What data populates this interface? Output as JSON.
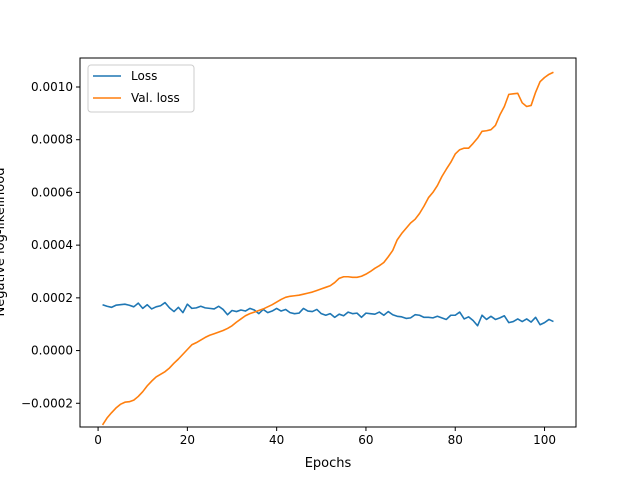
{
  "chart_data": {
    "type": "line",
    "title": "",
    "xlabel": "Epochs",
    "ylabel": "Negative log-likelihood",
    "xlim": [
      -4.05,
      107.05
    ],
    "ylim": [
      -0.00029,
      0.00111
    ],
    "xticks": [
      0,
      20,
      40,
      60,
      80,
      100
    ],
    "xtick_labels": [
      "0",
      "20",
      "40",
      "60",
      "80",
      "100"
    ],
    "yticks": [
      -0.0002,
      0.0,
      0.0002,
      0.0004,
      0.0006,
      0.0008,
      0.001
    ],
    "ytick_labels": [
      "−0.0002",
      "0.0000",
      "0.0002",
      "0.0004",
      "0.0006",
      "0.0008",
      "0.0010"
    ],
    "grid": false,
    "legend_position": "top-left",
    "series": [
      {
        "name": "Loss",
        "color": "#1f77b4",
        "points": [
          [
            1,
            0.000174
          ],
          [
            2,
            0.000168
          ],
          [
            3,
            0.000164
          ],
          [
            4,
            0.000172
          ],
          [
            5,
            0.000174
          ],
          [
            6,
            0.000176
          ],
          [
            7,
            0.000172
          ],
          [
            8,
            0.000166
          ],
          [
            9,
            0.00018
          ],
          [
            10,
            0.00016
          ],
          [
            11,
            0.000174
          ],
          [
            12,
            0.000158
          ],
          [
            13,
            0.000166
          ],
          [
            14,
            0.00017
          ],
          [
            15,
            0.000182
          ],
          [
            16,
            0.000162
          ],
          [
            17,
            0.000148
          ],
          [
            18,
            0.000164
          ],
          [
            19,
            0.000144
          ],
          [
            20,
            0.000176
          ],
          [
            21,
            0.00016
          ],
          [
            22,
            0.000162
          ],
          [
            23,
            0.000168
          ],
          [
            24,
            0.000162
          ],
          [
            25,
            0.00016
          ],
          [
            26,
            0.000158
          ],
          [
            27,
            0.000168
          ],
          [
            28,
            0.000156
          ],
          [
            29,
            0.000136
          ],
          [
            30,
            0.000152
          ],
          [
            31,
            0.000148
          ],
          [
            32,
            0.000154
          ],
          [
            33,
            0.00015
          ],
          [
            34,
            0.00016
          ],
          [
            35,
            0.000154
          ],
          [
            36,
            0.00014
          ],
          [
            37,
            0.000156
          ],
          [
            38,
            0.000144
          ],
          [
            39,
            0.00015
          ],
          [
            40,
            0.00016
          ],
          [
            41,
            0.00015
          ],
          [
            42,
            0.000156
          ],
          [
            43,
            0.000144
          ],
          [
            44,
            0.00014
          ],
          [
            45,
            0.000142
          ],
          [
            46,
            0.00016
          ],
          [
            47,
            0.00015
          ],
          [
            48,
            0.000148
          ],
          [
            49,
            0.000156
          ],
          [
            50,
            0.00014
          ],
          [
            51,
            0.000134
          ],
          [
            52,
            0.00014
          ],
          [
            53,
            0.000126
          ],
          [
            54,
            0.000138
          ],
          [
            55,
            0.000132
          ],
          [
            56,
            0.000146
          ],
          [
            57,
            0.00014
          ],
          [
            58,
            0.000142
          ],
          [
            59,
            0.000126
          ],
          [
            60,
            0.000142
          ],
          [
            61,
            0.00014
          ],
          [
            62,
            0.000138
          ],
          [
            63,
            0.000146
          ],
          [
            64,
            0.000134
          ],
          [
            65,
            0.000148
          ],
          [
            66,
            0.000136
          ],
          [
            67,
            0.00013
          ],
          [
            68,
            0.000128
          ],
          [
            69,
            0.000122
          ],
          [
            70,
            0.000124
          ],
          [
            71,
            0.000136
          ],
          [
            72,
            0.000134
          ],
          [
            73,
            0.000126
          ],
          [
            74,
            0.000126
          ],
          [
            75,
            0.000124
          ],
          [
            76,
            0.00013
          ],
          [
            77,
            0.000124
          ],
          [
            78,
            0.000118
          ],
          [
            79,
            0.000134
          ],
          [
            80,
            0.000134
          ],
          [
            81,
            0.000146
          ],
          [
            82,
            0.00012
          ],
          [
            83,
            0.000128
          ],
          [
            84,
            0.000114
          ],
          [
            85,
            9.4e-05
          ],
          [
            86,
            0.000134
          ],
          [
            87,
            0.000118
          ],
          [
            88,
            0.00013
          ],
          [
            89,
            0.000118
          ],
          [
            90,
            0.000124
          ],
          [
            91,
            0.000132
          ],
          [
            92,
            0.000106
          ],
          [
            93,
            0.00011
          ],
          [
            94,
            0.00012
          ],
          [
            95,
            0.00011
          ],
          [
            96,
            0.00012
          ],
          [
            97,
            0.000108
          ],
          [
            98,
            0.000126
          ],
          [
            99,
            9.8e-05
          ],
          [
            100,
            0.000106
          ],
          [
            101,
            0.000118
          ],
          [
            102,
            0.00011
          ]
        ]
      },
      {
        "name": "Val. loss",
        "color": "#ff7f0e",
        "points": [
          [
            1,
            -0.000282
          ],
          [
            2,
            -0.000256
          ],
          [
            3,
            -0.000236
          ],
          [
            4,
            -0.000218
          ],
          [
            5,
            -0.000204
          ],
          [
            6,
            -0.000196
          ],
          [
            7,
            -0.000194
          ],
          [
            8,
            -0.000188
          ],
          [
            9,
            -0.000174
          ],
          [
            10,
            -0.000156
          ],
          [
            11,
            -0.000134
          ],
          [
            12,
            -0.000116
          ],
          [
            13,
            -0.0001
          ],
          [
            14,
            -9e-05
          ],
          [
            15,
            -8e-05
          ],
          [
            16,
            -6.6e-05
          ],
          [
            17,
            -4.8e-05
          ],
          [
            18,
            -3.2e-05
          ],
          [
            19,
            -1.4e-05
          ],
          [
            20,
            4e-06
          ],
          [
            21,
            2.2e-05
          ],
          [
            22,
            3e-05
          ],
          [
            23,
            4e-05
          ],
          [
            24,
            5e-05
          ],
          [
            25,
            5.8e-05
          ],
          [
            26,
            6.4e-05
          ],
          [
            27,
            7e-05
          ],
          [
            28,
            7.6e-05
          ],
          [
            29,
            8.4e-05
          ],
          [
            30,
            9.4e-05
          ],
          [
            31,
            0.000108
          ],
          [
            32,
            0.00012
          ],
          [
            33,
            0.000132
          ],
          [
            34,
            0.00014
          ],
          [
            35,
            0.000146
          ],
          [
            36,
            0.000152
          ],
          [
            37,
            0.000158
          ],
          [
            38,
            0.000166
          ],
          [
            39,
            0.000174
          ],
          [
            40,
            0.000184
          ],
          [
            41,
            0.000194
          ],
          [
            42,
            0.000202
          ],
          [
            43,
            0.000206
          ],
          [
            44,
            0.000208
          ],
          [
            45,
            0.00021
          ],
          [
            46,
            0.000214
          ],
          [
            47,
            0.000218
          ],
          [
            48,
            0.000222
          ],
          [
            49,
            0.000228
          ],
          [
            50,
            0.000234
          ],
          [
            51,
            0.00024
          ],
          [
            52,
            0.000246
          ],
          [
            53,
            0.000258
          ],
          [
            54,
            0.000274
          ],
          [
            55,
            0.00028
          ],
          [
            56,
            0.00028
          ],
          [
            57,
            0.000278
          ],
          [
            58,
            0.000278
          ],
          [
            59,
            0.000282
          ],
          [
            60,
            0.00029
          ],
          [
            61,
            0.0003
          ],
          [
            62,
            0.000312
          ],
          [
            63,
            0.000322
          ],
          [
            64,
            0.000334
          ],
          [
            65,
            0.000356
          ],
          [
            66,
            0.00038
          ],
          [
            67,
            0.00042
          ],
          [
            68,
            0.000444
          ],
          [
            69,
            0.000464
          ],
          [
            70,
            0.000484
          ],
          [
            71,
            0.000498
          ],
          [
            72,
            0.00052
          ],
          [
            73,
            0.000548
          ],
          [
            74,
            0.00058
          ],
          [
            75,
            0.0006
          ],
          [
            76,
            0.000626
          ],
          [
            77,
            0.00066
          ],
          [
            78,
            0.000688
          ],
          [
            79,
            0.000714
          ],
          [
            80,
            0.000746
          ],
          [
            81,
            0.000762
          ],
          [
            82,
            0.000768
          ],
          [
            83,
            0.000768
          ],
          [
            84,
            0.000786
          ],
          [
            85,
            0.000806
          ],
          [
            86,
            0.000832
          ],
          [
            87,
            0.000834
          ],
          [
            88,
            0.000838
          ],
          [
            89,
            0.000854
          ],
          [
            90,
            0.000894
          ],
          [
            91,
            0.000926
          ],
          [
            92,
            0.000972
          ],
          [
            93,
            0.000974
          ],
          [
            94,
            0.000976
          ],
          [
            95,
            0.00094
          ],
          [
            96,
            0.000926
          ],
          [
            97,
            0.00093
          ],
          [
            98,
            0.00098
          ],
          [
            99,
            0.00102
          ],
          [
            100,
            0.001036
          ],
          [
            101,
            0.001048
          ],
          [
            102,
            0.001056
          ]
        ]
      }
    ]
  }
}
